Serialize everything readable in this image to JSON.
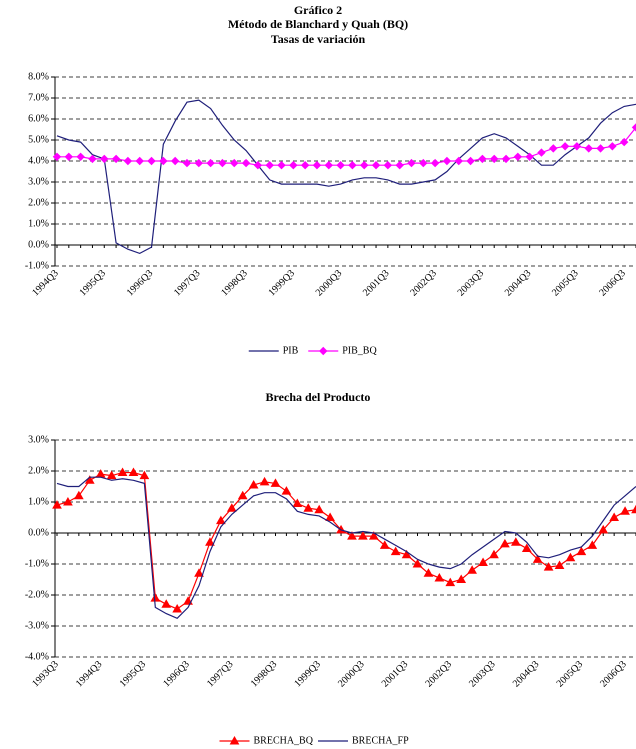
{
  "page_title": "Gráfico 2",
  "chart_data": [
    {
      "type": "line",
      "title": "Método de Blanchard y Quah (BQ)",
      "subtitle": "Tasas de variación",
      "categories": [
        "1994Q3",
        null,
        null,
        null,
        "1995Q3",
        null,
        null,
        null,
        "1996Q3",
        null,
        null,
        null,
        "1997Q3",
        null,
        null,
        null,
        "1998Q3",
        null,
        null,
        null,
        "1999Q3",
        null,
        null,
        null,
        "2000Q3",
        null,
        null,
        null,
        "2001Q3",
        null,
        null,
        null,
        "2002Q3",
        null,
        null,
        null,
        "2003Q3",
        null,
        null,
        null,
        "2004Q3",
        null,
        null,
        null,
        "2005Q3",
        null,
        null,
        null,
        "2006Q3",
        null
      ],
      "series": [
        {
          "name": "PIB",
          "color": "#1f1f7a",
          "marker": "none",
          "values": [
            5.2,
            5.0,
            4.9,
            4.3,
            4.1,
            0.1,
            -0.2,
            -0.4,
            -0.1,
            4.8,
            5.9,
            6.8,
            6.9,
            6.5,
            5.7,
            5.0,
            4.5,
            3.8,
            3.1,
            2.9,
            2.9,
            2.9,
            2.9,
            2.8,
            2.9,
            3.1,
            3.2,
            3.2,
            3.1,
            2.9,
            2.9,
            3.0,
            3.1,
            3.5,
            4.1,
            4.6,
            5.1,
            5.3,
            5.1,
            4.7,
            4.3,
            3.8,
            3.8,
            4.3,
            4.7,
            5.1,
            5.8,
            6.3,
            6.6,
            6.7
          ]
        },
        {
          "name": "PIB_BQ",
          "color": "#ff00ff",
          "marker": "diamond",
          "values": [
            4.2,
            4.2,
            4.2,
            4.1,
            4.1,
            4.1,
            4.0,
            4.0,
            4.0,
            4.0,
            4.0,
            3.9,
            3.9,
            3.9,
            3.9,
            3.9,
            3.9,
            3.8,
            3.8,
            3.8,
            3.8,
            3.8,
            3.8,
            3.8,
            3.8,
            3.8,
            3.8,
            3.8,
            3.8,
            3.8,
            3.9,
            3.9,
            3.9,
            4.0,
            4.0,
            4.0,
            4.1,
            4.1,
            4.1,
            4.2,
            4.2,
            4.4,
            4.6,
            4.7,
            4.7,
            4.6,
            4.6,
            4.7,
            4.9,
            5.6
          ]
        }
      ],
      "ylim": [
        -1,
        8
      ],
      "yticks": [
        {
          "value": -1,
          "label": "-1.0%"
        },
        {
          "value": 0,
          "label": "0.0%"
        },
        {
          "value": 1,
          "label": "1.0%"
        },
        {
          "value": 2,
          "label": "2.0%"
        },
        {
          "value": 3,
          "label": "3.0%"
        },
        {
          "value": 4,
          "label": "4.0%"
        },
        {
          "value": 5,
          "label": "5.0%"
        },
        {
          "value": 6,
          "label": "6.0%"
        },
        {
          "value": 7,
          "label": "7.0%"
        },
        {
          "value": 8,
          "label": "8.0%"
        }
      ],
      "grid": true,
      "legend": "bottom"
    },
    {
      "type": "line",
      "title": "Brecha del Producto",
      "categories": [
        "1993Q3",
        null,
        null,
        null,
        "1994Q3",
        null,
        null,
        null,
        "1995Q3",
        null,
        null,
        null,
        "1996Q3",
        null,
        null,
        null,
        "1997Q3",
        null,
        null,
        null,
        "1998Q3",
        null,
        null,
        null,
        "1999Q3",
        null,
        null,
        null,
        "2000Q3",
        null,
        null,
        null,
        "2001Q3",
        null,
        null,
        null,
        "2002Q3",
        null,
        null,
        null,
        "2003Q3",
        null,
        null,
        null,
        "2004Q3",
        null,
        null,
        null,
        "2005Q3",
        null,
        null,
        null,
        "2006Q3",
        null
      ],
      "series": [
        {
          "name": "BRECHA_BQ",
          "color": "#ff0000",
          "marker": "triangle",
          "values": [
            0.9,
            1.0,
            1.2,
            1.7,
            1.9,
            1.85,
            1.95,
            1.95,
            1.85,
            -2.1,
            -2.3,
            -2.45,
            -2.2,
            -1.3,
            -0.3,
            0.4,
            0.8,
            1.2,
            1.55,
            1.65,
            1.6,
            1.35,
            0.95,
            0.8,
            0.75,
            0.5,
            0.1,
            -0.1,
            -0.1,
            -0.1,
            -0.4,
            -0.6,
            -0.7,
            -1.0,
            -1.3,
            -1.45,
            -1.6,
            -1.5,
            -1.2,
            -0.95,
            -0.7,
            -0.35,
            -0.3,
            -0.5,
            -0.85,
            -1.1,
            -1.05,
            -0.8,
            -0.6,
            -0.4,
            0.1,
            0.5,
            0.7,
            0.75
          ]
        },
        {
          "name": "BRECHA_FP",
          "color": "#1f1f7a",
          "marker": "none",
          "values": [
            1.6,
            1.5,
            1.5,
            1.8,
            1.8,
            1.7,
            1.75,
            1.7,
            1.6,
            -2.4,
            -2.6,
            -2.75,
            -2.4,
            -1.7,
            -0.6,
            0.2,
            0.6,
            0.9,
            1.2,
            1.3,
            1.3,
            1.1,
            0.7,
            0.6,
            0.55,
            0.35,
            0.1,
            0.0,
            0.05,
            0.0,
            -0.2,
            -0.4,
            -0.6,
            -0.85,
            -1.0,
            -1.1,
            -1.15,
            -1.0,
            -0.7,
            -0.45,
            -0.2,
            0.05,
            0.0,
            -0.3,
            -0.75,
            -0.8,
            -0.7,
            -0.55,
            -0.45,
            -0.1,
            0.4,
            0.9,
            1.2,
            1.5
          ]
        }
      ],
      "ylim": [
        -4,
        3
      ],
      "yticks": [
        {
          "value": -4,
          "label": "-4.0%"
        },
        {
          "value": -3,
          "label": "-3.0%"
        },
        {
          "value": -2,
          "label": "-2.0%"
        },
        {
          "value": -1,
          "label": "-1.0%"
        },
        {
          "value": 0,
          "label": "0.0%"
        },
        {
          "value": 1,
          "label": "1.0%"
        },
        {
          "value": 2,
          "label": "2.0%"
        },
        {
          "value": 3,
          "label": "3.0%"
        }
      ],
      "grid": true,
      "legend": "bottom"
    }
  ]
}
